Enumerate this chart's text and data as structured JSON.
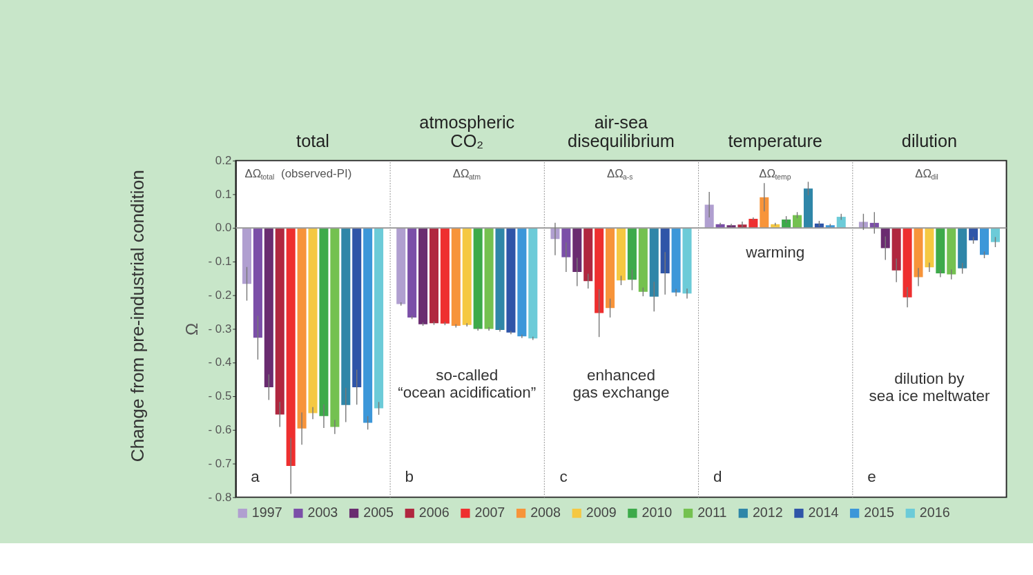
{
  "chart_data": {
    "type": "bar",
    "categories": [
      "total",
      "atmospheric CO₂",
      "air-sea disequilibrium",
      "temperature",
      "dilution"
    ],
    "ylabel": "Ω",
    "ylim": [
      -0.8,
      0.2
    ],
    "yticks": [
      {
        "value": -0.8,
        "label": "- 0.8"
      },
      {
        "value": -0.7,
        "label": "- 0.7"
      },
      {
        "value": -0.6,
        "label": "- 0.6"
      },
      {
        "value": -0.5,
        "label": "- 0.5"
      },
      {
        "value": -0.4,
        "label": "- 0.4"
      },
      {
        "value": -0.3,
        "label": "- 0.3"
      },
      {
        "value": -0.2,
        "label": "- 0.2"
      },
      {
        "value": -0.1,
        "label": "- 0.1"
      },
      {
        "value": 0,
        "label": "0.0"
      },
      0.1,
      0.2
    ],
    "grid": "x",
    "legend": "bottom",
    "ref_lines": [
      {
        "axis": "y",
        "value": 0,
        "color": "#999999"
      }
    ],
    "series": [
      {
        "name": "1997",
        "color": "#b09fd0",
        "values": [
          -0.166,
          -0.226,
          -0.033,
          0.069,
          0.018
        ],
        "errors": [
          0.05,
          0.005,
          0.048,
          0.038,
          0.024
        ]
      },
      {
        "name": "2003",
        "color": "#7b4fa8",
        "values": [
          -0.326,
          -0.266,
          -0.087,
          0.011,
          0.015
        ],
        "errors": [
          0.065,
          0.005,
          0.044,
          0.004,
          0.032
        ]
      },
      {
        "name": "2005",
        "color": "#6a2c70",
        "values": [
          -0.473,
          -0.286,
          -0.131,
          0.008,
          -0.06
        ],
        "errors": [
          0.038,
          0.005,
          0.042,
          0.004,
          0.035
        ]
      },
      {
        "name": "2006",
        "color": "#b0273f",
        "values": [
          -0.554,
          -0.283,
          -0.158,
          0.01,
          -0.126
        ],
        "errors": [
          0.037,
          0.005,
          0.022,
          0.009,
          0.035
        ]
      },
      {
        "name": "2007",
        "color": "#ee2f2f",
        "values": [
          -0.707,
          -0.284,
          -0.253,
          0.027,
          -0.206
        ],
        "errors": [
          0.083,
          0.005,
          0.071,
          0.004,
          0.03
        ]
      },
      {
        "name": "2008",
        "color": "#f7943a",
        "values": [
          -0.596,
          -0.291,
          -0.238,
          0.091,
          -0.146
        ],
        "errors": [
          0.048,
          0.005,
          0.028,
          0.042,
          0.027
        ]
      },
      {
        "name": "2009",
        "color": "#f5c842",
        "values": [
          -0.55,
          -0.288,
          -0.156,
          0.011,
          -0.117
        ],
        "errors": [
          0.018,
          0.005,
          0.014,
          0.004,
          0.014
        ]
      },
      {
        "name": "2010",
        "color": "#3daa4a",
        "values": [
          -0.559,
          -0.3,
          -0.154,
          0.025,
          -0.135
        ],
        "errors": [
          0.035,
          0.005,
          0.031,
          0.01,
          0.011
        ]
      },
      {
        "name": "2011",
        "color": "#74c150",
        "values": [
          -0.591,
          -0.3,
          -0.19,
          0.038,
          -0.138
        ],
        "errors": [
          0.021,
          0.005,
          0.013,
          0.009,
          0.015
        ]
      },
      {
        "name": "2012",
        "color": "#2f86a8",
        "values": [
          -0.526,
          -0.303,
          -0.204,
          0.117,
          -0.12
        ],
        "errors": [
          0.051,
          0.005,
          0.044,
          0.02,
          0.016
        ]
      },
      {
        "name": "2014",
        "color": "#2f55a8",
        "values": [
          -0.473,
          -0.311,
          -0.135,
          0.013,
          -0.037
        ],
        "errors": [
          0.052,
          0.005,
          0.063,
          0.008,
          0.01
        ]
      },
      {
        "name": "2015",
        "color": "#3c97d9",
        "values": [
          -0.579,
          -0.322,
          -0.192,
          0.008,
          -0.08
        ],
        "errors": [
          0.02,
          0.005,
          0.011,
          0.004,
          0.01
        ]
      },
      {
        "name": "2016",
        "color": "#6ccbd8",
        "values": [
          -0.536,
          -0.328,
          -0.195,
          0.033,
          -0.042
        ],
        "errors": [
          0.019,
          0.005,
          0.015,
          0.009,
          0.015
        ]
      }
    ],
    "annotations": [
      "Change from pre-industrial condition",
      "ΔΩ$_{total}$ (observed-PI)",
      "ΔΩ$_{atm}$",
      "ΔΩ$_{a-s}$",
      "ΔΩ$_{temp}$",
      "ΔΩ$_{dil}$",
      "a",
      "b",
      "c",
      "d",
      "e",
      "so-called\n“ocean acidification”",
      "enhanced\ngas exchange",
      "warming",
      "dilution by\nsea ice meltwater"
    ]
  }
}
